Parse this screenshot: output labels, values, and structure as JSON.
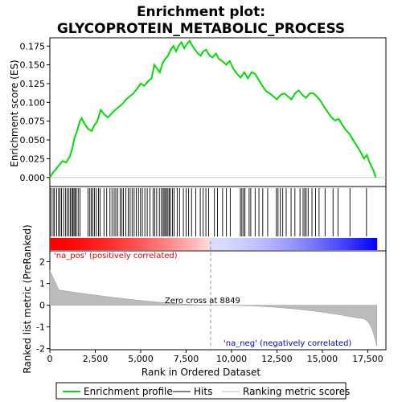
{
  "chart_data": {
    "type": "line",
    "title_line1": "Enrichment plot:",
    "title_line2": "GLYCOPROTEIN_METABOLIC_PROCESS",
    "xlabel": "Rank in Ordered Dataset",
    "ylabel_top": "Enrichment score (ES)",
    "ylabel_bottom": "Ranked list metric (PreRanked)",
    "xlim": [
      0,
      18500
    ],
    "es_ylim": [
      -0.012,
      0.186
    ],
    "metric_ylim": [
      -2.05,
      2.5
    ],
    "x_ticks": [
      0,
      2500,
      5000,
      7500,
      10000,
      12500,
      15000,
      17500
    ],
    "x_tick_labels": [
      "0",
      "2,500",
      "5,000",
      "7,500",
      "10,000",
      "12,500",
      "15,000",
      "17,500"
    ],
    "es_ticks": [
      0.0,
      0.025,
      0.05,
      0.075,
      0.1,
      0.125,
      0.15,
      0.175
    ],
    "es_tick_labels": [
      "0.000",
      "0.025",
      "0.050",
      "0.075",
      "0.100",
      "0.125",
      "0.150",
      "0.175"
    ],
    "metric_ticks": [
      -2,
      -1,
      0,
      1,
      2
    ],
    "metric_tick_labels": [
      "-2",
      "-1",
      "0",
      "1",
      "2"
    ],
    "zero_cross_rank": 8849,
    "zero_cross_label": "Zero cross at 8849",
    "pos_label": "'na_pos' (positively correlated)",
    "neg_label": "'na_neg' (negatively correlated)",
    "n_genes": 18000,
    "legend": [
      "Enrichment profile",
      "Hits",
      "Ranking metric scores"
    ],
    "colors": {
      "profile": "#00dd00",
      "hits": "#000000",
      "metric_fill": "#bbbbbb",
      "pos_text": "#dd0000",
      "neg_text": "#0000cc",
      "bar_red": "#ff0000",
      "bar_blue": "#0000ff"
    },
    "es_profile": [
      [
        0,
        0.0
      ],
      [
        150,
        0.006
      ],
      [
        300,
        0.01
      ],
      [
        500,
        0.016
      ],
      [
        700,
        0.022
      ],
      [
        900,
        0.02
      ],
      [
        1100,
        0.028
      ],
      [
        1250,
        0.04
      ],
      [
        1350,
        0.052
      ],
      [
        1500,
        0.062
      ],
      [
        1650,
        0.075
      ],
      [
        1750,
        0.079
      ],
      [
        1900,
        0.072
      ],
      [
        2100,
        0.065
      ],
      [
        2300,
        0.062
      ],
      [
        2450,
        0.07
      ],
      [
        2600,
        0.074
      ],
      [
        2800,
        0.09
      ],
      [
        3000,
        0.084
      ],
      [
        3200,
        0.08
      ],
      [
        3400,
        0.085
      ],
      [
        3600,
        0.09
      ],
      [
        3850,
        0.095
      ],
      [
        4000,
        0.098
      ],
      [
        4200,
        0.104
      ],
      [
        4400,
        0.108
      ],
      [
        4600,
        0.112
      ],
      [
        4800,
        0.118
      ],
      [
        5000,
        0.125
      ],
      [
        5200,
        0.122
      ],
      [
        5400,
        0.128
      ],
      [
        5600,
        0.132
      ],
      [
        5750,
        0.15
      ],
      [
        5900,
        0.145
      ],
      [
        6050,
        0.14
      ],
      [
        6200,
        0.152
      ],
      [
        6350,
        0.158
      ],
      [
        6500,
        0.162
      ],
      [
        6650,
        0.17
      ],
      [
        6800,
        0.175
      ],
      [
        6950,
        0.168
      ],
      [
        7100,
        0.176
      ],
      [
        7250,
        0.18
      ],
      [
        7400,
        0.172
      ],
      [
        7550,
        0.178
      ],
      [
        7700,
        0.182
      ],
      [
        7850,
        0.175
      ],
      [
        8000,
        0.17
      ],
      [
        8150,
        0.165
      ],
      [
        8300,
        0.162
      ],
      [
        8450,
        0.168
      ],
      [
        8600,
        0.17
      ],
      [
        8800,
        0.162
      ],
      [
        8950,
        0.16
      ],
      [
        9150,
        0.165
      ],
      [
        9300,
        0.158
      ],
      [
        9500,
        0.155
      ],
      [
        9700,
        0.15
      ],
      [
        9900,
        0.155
      ],
      [
        10100,
        0.145
      ],
      [
        10300,
        0.138
      ],
      [
        10500,
        0.133
      ],
      [
        10700,
        0.14
      ],
      [
        10900,
        0.132
      ],
      [
        11100,
        0.14
      ],
      [
        11300,
        0.138
      ],
      [
        11500,
        0.13
      ],
      [
        11700,
        0.122
      ],
      [
        11900,
        0.115
      ],
      [
        12100,
        0.112
      ],
      [
        12300,
        0.108
      ],
      [
        12500,
        0.104
      ],
      [
        12700,
        0.11
      ],
      [
        12900,
        0.112
      ],
      [
        13100,
        0.108
      ],
      [
        13300,
        0.104
      ],
      [
        13500,
        0.112
      ],
      [
        13700,
        0.116
      ],
      [
        13900,
        0.11
      ],
      [
        14100,
        0.106
      ],
      [
        14300,
        0.112
      ],
      [
        14500,
        0.112
      ],
      [
        14700,
        0.108
      ],
      [
        14900,
        0.102
      ],
      [
        15100,
        0.094
      ],
      [
        15300,
        0.087
      ],
      [
        15500,
        0.08
      ],
      [
        15700,
        0.076
      ],
      [
        15900,
        0.078
      ],
      [
        16100,
        0.07
      ],
      [
        16300,
        0.063
      ],
      [
        16500,
        0.058
      ],
      [
        16700,
        0.05
      ],
      [
        16900,
        0.042
      ],
      [
        17100,
        0.034
      ],
      [
        17300,
        0.025
      ],
      [
        17450,
        0.03
      ],
      [
        17600,
        0.02
      ],
      [
        17800,
        0.01
      ],
      [
        17950,
        0.0
      ]
    ],
    "hit_ranks": [
      60,
      180,
      250,
      370,
      480,
      560,
      640,
      760,
      870,
      960,
      1050,
      1130,
      1210,
      1270,
      1330,
      1390,
      1460,
      1560,
      1660,
      2100,
      2200,
      2280,
      2370,
      2460,
      2560,
      2680,
      2760,
      2980,
      3130,
      3310,
      3420,
      3540,
      3630,
      3730,
      3870,
      3970,
      4050,
      4180,
      4320,
      4420,
      4530,
      4640,
      4760,
      4880,
      4990,
      5090,
      5230,
      5360,
      5510,
      5680,
      5770,
      5880,
      6030,
      6140,
      6230,
      6290,
      6360,
      6430,
      6500,
      6570,
      6640,
      6750,
      6840,
      7010,
      7140,
      7350,
      7500,
      7640,
      7800,
      8030,
      8280,
      8440,
      8590,
      8740,
      9060,
      9230,
      9510,
      9720,
      9930,
      10490,
      10570,
      10660,
      10740,
      10970,
      11060,
      11300,
      11510,
      11720,
      11990,
      12470,
      12560,
      12690,
      12820,
      13010,
      13280,
      13490,
      13770,
      13940,
      14030,
      14110,
      14220,
      14430,
      14630,
      14820,
      15150,
      15590,
      15860,
      16520,
      17430
    ]
  }
}
